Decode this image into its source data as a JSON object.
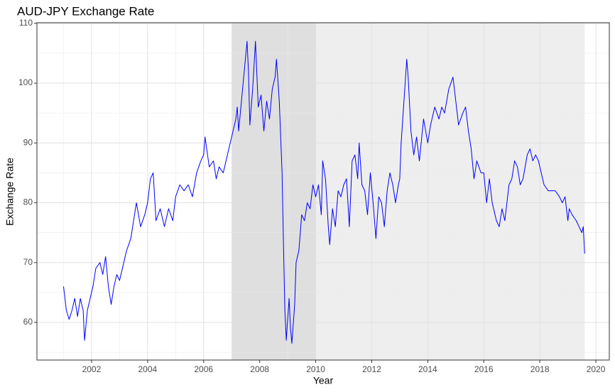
{
  "chart_data": {
    "type": "line",
    "title": "AUD-JPY Exchange Rate",
    "x_label": "Year",
    "y_label": "Exchange Rate",
    "color": "#0000ff",
    "grid": true,
    "shaded_regions": [
      {
        "start": 2007,
        "end": 2010,
        "color": "#dcdcdc"
      },
      {
        "start": 2010,
        "end": 2019.6,
        "color": "#ececec"
      }
    ],
    "xlim": [
      2000.05,
      2020.48
    ],
    "ylim": [
      53.7,
      110.1
    ],
    "xticks": [
      2002,
      2004,
      2006,
      2008,
      2010,
      2012,
      2014,
      2016,
      2018,
      2020
    ],
    "yticks": [
      60,
      70,
      80,
      90,
      100,
      110
    ],
    "x": [
      2001.0,
      2001.1,
      2001.2,
      2001.3,
      2001.4,
      2001.5,
      2001.6,
      2001.7,
      2001.75,
      2001.85,
      2001.95,
      2002.05,
      2002.15,
      2002.3,
      2002.4,
      2002.5,
      2002.6,
      2002.7,
      2002.8,
      2002.9,
      2003.0,
      2003.1,
      2003.25,
      2003.4,
      2003.5,
      2003.6,
      2003.75,
      2003.9,
      2004.0,
      2004.1,
      2004.2,
      2004.3,
      2004.45,
      2004.6,
      2004.75,
      2004.9,
      2005.0,
      2005.15,
      2005.3,
      2005.45,
      2005.6,
      2005.75,
      2005.9,
      2006.0,
      2006.05,
      2006.2,
      2006.35,
      2006.45,
      2006.55,
      2006.7,
      2006.85,
      2006.95,
      2007.05,
      2007.15,
      2007.2,
      2007.25,
      2007.35,
      2007.45,
      2007.55,
      2007.6,
      2007.65,
      2007.75,
      2007.85,
      2007.95,
      2008.05,
      2008.15,
      2008.25,
      2008.35,
      2008.45,
      2008.55,
      2008.6,
      2008.7,
      2008.8,
      2008.85,
      2008.9,
      2008.95,
      2009.05,
      2009.1,
      2009.15,
      2009.25,
      2009.3,
      2009.4,
      2009.5,
      2009.6,
      2009.7,
      2009.8,
      2009.9,
      2010.0,
      2010.1,
      2010.2,
      2010.25,
      2010.35,
      2010.45,
      2010.5,
      2010.6,
      2010.7,
      2010.8,
      2010.9,
      2011.0,
      2011.1,
      2011.2,
      2011.3,
      2011.4,
      2011.5,
      2011.55,
      2011.65,
      2011.75,
      2011.85,
      2011.95,
      2012.05,
      2012.15,
      2012.25,
      2012.35,
      2012.45,
      2012.55,
      2012.65,
      2012.75,
      2012.85,
      2012.95,
      2013.0,
      2013.05,
      2013.15,
      2013.25,
      2013.3,
      2013.4,
      2013.5,
      2013.6,
      2013.7,
      2013.85,
      2014.0,
      2014.1,
      2014.25,
      2014.4,
      2014.5,
      2014.6,
      2014.75,
      2014.9,
      2015.0,
      2015.1,
      2015.25,
      2015.35,
      2015.45,
      2015.55,
      2015.65,
      2015.75,
      2015.9,
      2016.0,
      2016.1,
      2016.2,
      2016.3,
      2016.45,
      2016.55,
      2016.65,
      2016.75,
      2016.9,
      2017.0,
      2017.1,
      2017.2,
      2017.3,
      2017.4,
      2017.55,
      2017.65,
      2017.75,
      2017.85,
      2017.95,
      2018.05,
      2018.15,
      2018.3,
      2018.45,
      2018.55,
      2018.7,
      2018.8,
      2018.9,
      2019.0,
      2019.05,
      2019.15,
      2019.3,
      2019.4,
      2019.5,
      2019.55,
      2019.6
    ],
    "values": [
      66,
      62,
      60.5,
      62,
      64,
      61,
      64,
      62,
      57,
      62,
      64,
      66,
      69,
      70,
      68,
      71,
      66,
      63,
      66,
      68,
      67,
      69,
      72,
      74,
      77,
      80,
      76,
      78,
      80,
      84,
      85,
      77,
      79,
      76,
      79,
      77,
      81,
      83,
      82,
      83,
      81,
      85,
      87,
      88,
      91,
      86,
      87,
      84,
      86,
      85,
      88,
      90,
      92,
      94,
      96,
      92,
      97,
      102,
      107,
      102,
      93,
      99,
      107,
      96,
      98,
      92,
      97,
      94,
      99,
      101,
      104,
      97,
      85,
      73,
      62,
      57,
      64,
      59,
      56.5,
      63,
      70,
      72,
      78,
      77,
      80,
      79,
      83,
      81,
      83,
      78,
      87,
      84,
      76,
      73,
      79,
      76,
      82,
      81,
      83,
      84,
      76,
      87,
      88,
      84,
      90,
      83,
      82,
      78,
      85,
      80,
      74,
      81,
      80,
      76,
      82,
      85,
      83,
      80,
      83,
      84,
      90,
      97,
      104,
      101,
      92,
      88,
      91,
      87,
      94,
      90,
      93,
      96,
      94,
      96,
      95,
      99,
      101,
      97,
      93,
      95,
      96,
      92,
      89,
      84,
      87,
      85,
      85,
      80,
      84,
      80,
      77,
      76,
      79,
      77,
      83,
      84,
      87,
      86,
      83,
      84,
      88,
      89,
      87,
      88,
      87,
      85,
      83,
      82,
      82,
      82,
      81,
      80,
      81,
      77,
      79,
      78,
      77,
      76,
      75,
      76,
      71.5
    ]
  }
}
